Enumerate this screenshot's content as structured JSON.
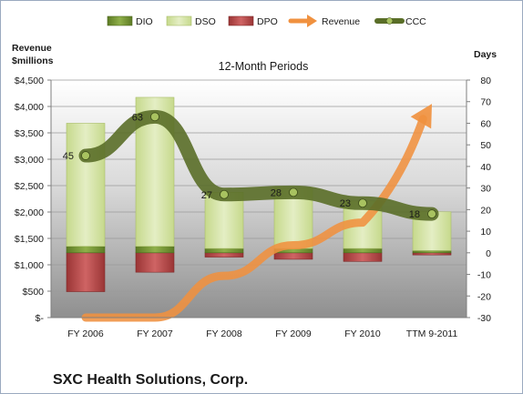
{
  "chart_data": {
    "type": "bar",
    "title": "12-Month Periods",
    "footer": "SXC Health Solutions, Corp.",
    "categories": [
      "FY 2006",
      "FY 2007",
      "FY 2008",
      "FY 2009",
      "FY 2010",
      "TTM 9-2011"
    ],
    "left_axis": {
      "title_lines": [
        "Revenue",
        "$millions"
      ],
      "ticks": [
        "$-",
        "$500",
        "$1,000",
        "$1,500",
        "$2,000",
        "$2,500",
        "$3,000",
        "$3,500",
        "$4,000",
        "$4,500"
      ],
      "ylim": [
        0,
        4500
      ]
    },
    "right_axis": {
      "title": "Days",
      "ticks": [
        "-30",
        "-20",
        "-10",
        "0",
        "10",
        "20",
        "30",
        "40",
        "50",
        "60",
        "70",
        "80"
      ],
      "ylim": [
        -30,
        80
      ]
    },
    "series": [
      {
        "name": "DIO",
        "axis": "right",
        "kind": "stacked-bar",
        "color": "#6e8e2f",
        "values": [
          3,
          3,
          2,
          2,
          2,
          1
        ]
      },
      {
        "name": "DSO",
        "axis": "right",
        "kind": "stacked-bar",
        "color": "#d7e4a8",
        "values": [
          57,
          69,
          26,
          28,
          22,
          18
        ]
      },
      {
        "name": "DPO",
        "axis": "right",
        "kind": "negative-bar",
        "color": "#b84a4a",
        "values": [
          -18,
          -9,
          -2,
          -3,
          -4,
          -1
        ]
      },
      {
        "name": "Revenue",
        "axis": "left",
        "kind": "arrow-line",
        "color": "#f0913f",
        "values": [
          0,
          0,
          790,
          1370,
          1800,
          4050
        ]
      },
      {
        "name": "CCC",
        "axis": "right",
        "kind": "line",
        "color": "#5a6e28",
        "values": [
          45,
          63,
          27,
          28,
          23,
          18
        ]
      }
    ],
    "data_labels": [
      "45",
      "63",
      "27",
      "28",
      "23",
      "18"
    ],
    "grid": true,
    "legend_position": "top"
  }
}
